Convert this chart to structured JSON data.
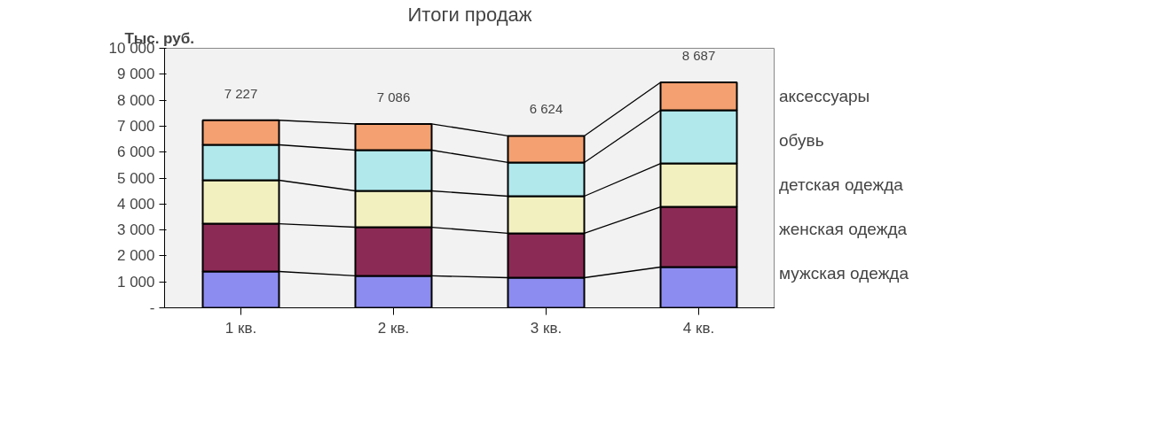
{
  "chart_data": {
    "type": "bar",
    "title": "Итоги продаж",
    "ylabel": "Тыс. руб.",
    "categories": [
      "1 кв.",
      "2 кв.",
      "3 кв.",
      "4 кв."
    ],
    "stacked": true,
    "series": [
      {
        "name": "мужская одежда",
        "color": "#8c8cf0",
        "values": [
          1400,
          1230,
          1160,
          1570
        ]
      },
      {
        "name": "женская одежда",
        "color": "#8b2b55",
        "values": [
          1840,
          1875,
          1710,
          2320
        ]
      },
      {
        "name": "детская одежда",
        "color": "#f3f0c0",
        "values": [
          1675,
          1400,
          1430,
          1670
        ]
      },
      {
        "name": "обувь",
        "color": "#b0e8ec",
        "values": [
          1365,
          1570,
          1300,
          2050
        ]
      },
      {
        "name": "аксессуары",
        "color": "#f4a070",
        "values": [
          947,
          1011,
          1024,
          1077
        ]
      }
    ],
    "totals": [
      "7 227",
      "7 086",
      "6 624",
      "8 687"
    ],
    "ylim": [
      0,
      10000
    ],
    "yticks": [
      {
        "value": 0,
        "label": "-"
      },
      {
        "value": 1000,
        "label": "1 000"
      },
      {
        "value": 2000,
        "label": "2 000"
      },
      {
        "value": 3000,
        "label": "3 000"
      },
      {
        "value": 4000,
        "label": "4 000"
      },
      {
        "value": 5000,
        "label": "5 000"
      },
      {
        "value": 6000,
        "label": "6 000"
      },
      {
        "value": 7000,
        "label": "7 000"
      },
      {
        "value": 8000,
        "label": "8 000"
      },
      {
        "value": 9000,
        "label": "9 000"
      },
      {
        "value": 10000,
        "label": "10 000"
      }
    ],
    "grid": false,
    "legend": "right"
  }
}
